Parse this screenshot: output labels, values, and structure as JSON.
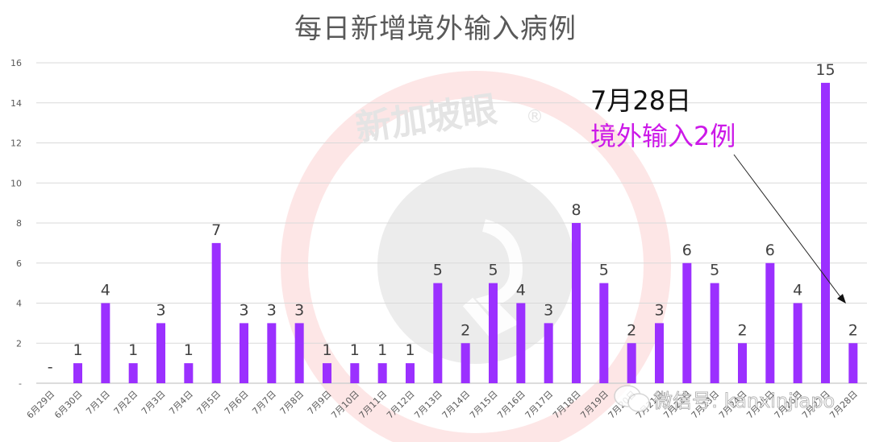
{
  "chart_data": {
    "type": "bar",
    "title": "每日新增境外输入病例",
    "xlabel": "",
    "ylabel": "",
    "ylim": [
      0,
      16
    ],
    "yticks": [
      0,
      2,
      4,
      6,
      8,
      10,
      12,
      14,
      16
    ],
    "ytick_labels": [
      "-",
      "2",
      "4",
      "6",
      "8",
      "10",
      "12",
      "14",
      "16"
    ],
    "grid": true,
    "legend": "none",
    "bar_color": "#9b30ff",
    "categories": [
      "6月29日",
      "6月30日",
      "7月1日",
      "7月2日",
      "7月3日",
      "7月4日",
      "7月5日",
      "7月6日",
      "7月7日",
      "7月8日",
      "7月9日",
      "7月10日",
      "7月11日",
      "7月12日",
      "7月13日",
      "7月14日",
      "7月15日",
      "7月16日",
      "7月17日",
      "7月18日",
      "7月19日",
      "7月20日",
      "7月21日",
      "7月22日",
      "7月23日",
      "7月24日",
      "7月25日",
      "7月26日",
      "7月27日",
      "7月28日"
    ],
    "values": [
      0,
      1,
      4,
      1,
      3,
      1,
      7,
      3,
      3,
      3,
      1,
      1,
      1,
      1,
      5,
      2,
      5,
      4,
      3,
      8,
      5,
      2,
      3,
      6,
      5,
      2,
      6,
      4,
      15,
      2
    ],
    "data_labels": [
      "-",
      "1",
      "4",
      "1",
      "3",
      "1",
      "7",
      "3",
      "3",
      "3",
      "1",
      "1",
      "1",
      "1",
      "5",
      "2",
      "5",
      "4",
      "3",
      "8",
      "5",
      "2",
      "3",
      "6",
      "5",
      "2",
      "6",
      "4",
      "15",
      "2"
    ],
    "annotations": [
      {
        "text": "7月28日",
        "color": "#111111"
      },
      {
        "text": "境外输入2例",
        "color": "#cc19e8",
        "arrow_to": "7月28日"
      }
    ]
  },
  "watermarks": {
    "center_logo_text": "新加坡眼®",
    "footer_text": "微信号: kanxinjiapo"
  }
}
